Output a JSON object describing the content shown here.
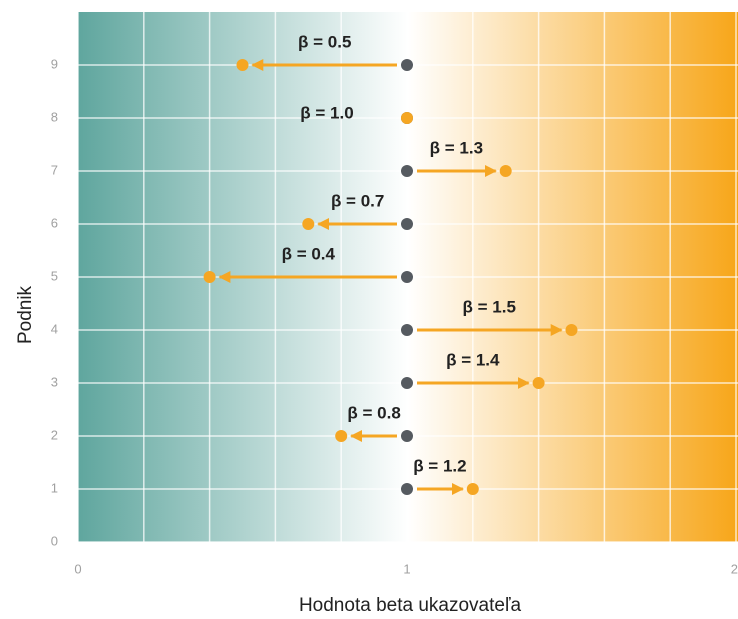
{
  "chart_data": {
    "type": "arrow-dot",
    "x_label": "Hodnota beta ukazovateľa",
    "y_label": "Podnik",
    "categories": [
      1,
      2,
      3,
      4,
      5,
      6,
      7,
      8,
      9
    ],
    "baseline": 1,
    "baseline_color": "#555a60",
    "color": "#f5a623",
    "values": [
      1.2,
      0.8,
      1.4,
      1.5,
      0.4,
      0.7,
      1.3,
      1.0,
      0.5
    ],
    "value_labels": [
      "β = 1.2",
      "β = 0.8",
      "β = 1.4",
      "β = 1.5",
      "β = 0.4",
      "β = 0.7",
      "β = 1.3",
      "β = 1.0",
      "β = 0.5"
    ],
    "xlim": [
      0,
      2
    ],
    "xticks": [
      0,
      1,
      2
    ],
    "x_minor_ticks": [
      0.2,
      0.4,
      0.6,
      0.8,
      1.2,
      1.4,
      1.6,
      1.8
    ],
    "ylim": [
      0,
      10
    ],
    "yticks": [
      0,
      1,
      2,
      3,
      4,
      5,
      6,
      7,
      8,
      9
    ],
    "grid": true
  }
}
